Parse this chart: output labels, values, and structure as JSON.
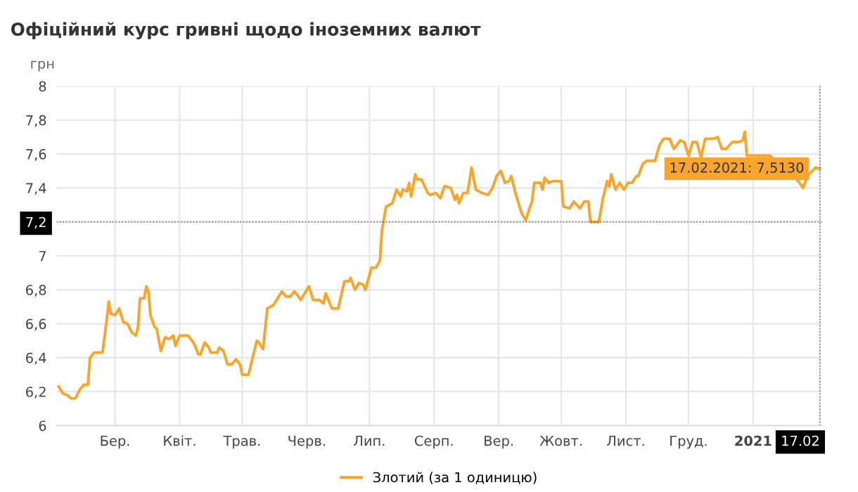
{
  "chart_data": {
    "type": "line",
    "title": "Офіційний курс гривні щодо іноземних валют",
    "ylabel": "грн",
    "ylim": [
      6,
      8
    ],
    "yticks": [
      6,
      {
        "value": 6.2,
        "label": "6,2"
      },
      {
        "value": 6.4,
        "label": "6,4"
      },
      {
        "value": 6.6,
        "label": "6,6"
      },
      {
        "value": 6.8,
        "label": "6,8"
      },
      7,
      {
        "value": 7.2,
        "label": "7,2"
      },
      {
        "value": 7.4,
        "label": "7,4"
      },
      {
        "value": 7.6,
        "label": "7,6"
      },
      {
        "value": 7.8,
        "label": "7,8"
      },
      8
    ],
    "xlim": [
      "2020-02-17",
      "2021-02-18"
    ],
    "xticks": [
      {
        "value": "2020-03-16",
        "label": "Бер."
      },
      {
        "value": "2020-04-16",
        "label": "Квіт."
      },
      {
        "value": "2020-05-16",
        "label": "Трав."
      },
      {
        "value": "2020-06-16",
        "label": "Черв."
      },
      {
        "value": "2020-07-16",
        "label": "Лип."
      },
      {
        "value": "2020-08-16",
        "label": "Серп."
      },
      {
        "value": "2020-09-16",
        "label": "Вер."
      },
      {
        "value": "2020-10-16",
        "label": "Жовт."
      },
      {
        "value": "2020-11-16",
        "label": "Лист."
      },
      {
        "value": "2020-12-16",
        "label": "Груд."
      },
      {
        "value": "2021-01-16",
        "label": "2021"
      },
      {
        "value": "2021-02-17",
        "label": "17.02"
      }
    ],
    "grid": true,
    "legend": "bottom",
    "marker": "none",
    "line_style": "solid",
    "ref_lines": [
      {
        "axis": "y",
        "value": 7.2,
        "line_style": "dotted",
        "color": "#000000"
      },
      {
        "axis": "x",
        "value": "2021-02-17",
        "line_style": "dotted",
        "color": "#000000"
      }
    ],
    "annotations": [
      {
        "text": "17.02.2021: 7,5130",
        "x": "2021-02-17",
        "y": 7.513
      }
    ],
    "series": [
      {
        "name": "Злотий (за 1 одиницю)",
        "color": "#f9a52c",
        "x": [
          "2020-02-18",
          "2020-02-20",
          "2020-02-22",
          "2020-02-24",
          "2020-02-26",
          "2020-02-28",
          "2020-03-01",
          "2020-03-03",
          "2020-03-04",
          "2020-03-06",
          "2020-03-10",
          "2020-03-12",
          "2020-03-13",
          "2020-03-14",
          "2020-03-16",
          "2020-03-18",
          "2020-03-20",
          "2020-03-22",
          "2020-03-24",
          "2020-03-26",
          "2020-03-27",
          "2020-03-28",
          "2020-03-30",
          "2020-03-31",
          "2020-04-01",
          "2020-04-02",
          "2020-04-04",
          "2020-04-05",
          "2020-04-07",
          "2020-04-09",
          "2020-04-11",
          "2020-04-13",
          "2020-04-14",
          "2020-04-16",
          "2020-04-20",
          "2020-04-22",
          "2020-04-23",
          "2020-04-25",
          "2020-04-26",
          "2020-04-28",
          "2020-04-30",
          "2020-05-01",
          "2020-05-04",
          "2020-05-05",
          "2020-05-07",
          "2020-05-09",
          "2020-05-11",
          "2020-05-13",
          "2020-05-15",
          "2020-05-16",
          "2020-05-19",
          "2020-05-20",
          "2020-05-23",
          "2020-05-24",
          "2020-05-26",
          "2020-05-28",
          "2020-05-31",
          "2020-06-02",
          "2020-06-04",
          "2020-06-06",
          "2020-06-08",
          "2020-06-10",
          "2020-06-12",
          "2020-06-13",
          "2020-06-15",
          "2020-06-17",
          "2020-06-19",
          "2020-06-22",
          "2020-06-24",
          "2020-06-25",
          "2020-06-28",
          "2020-07-01",
          "2020-07-04",
          "2020-07-06",
          "2020-07-07",
          "2020-07-09",
          "2020-07-11",
          "2020-07-13",
          "2020-07-14",
          "2020-07-17",
          "2020-07-19",
          "2020-07-21",
          "2020-07-22",
          "2020-07-24",
          "2020-07-27",
          "2020-07-29",
          "2020-07-31",
          "2020-08-01",
          "2020-08-03",
          "2020-08-04",
          "2020-08-05",
          "2020-08-07",
          "2020-08-08",
          "2020-08-10",
          "2020-08-13",
          "2020-08-14",
          "2020-08-17",
          "2020-08-19",
          "2020-08-21",
          "2020-08-24",
          "2020-08-26",
          "2020-08-27",
          "2020-08-28",
          "2020-08-30",
          "2020-09-01",
          "2020-09-03",
          "2020-09-05",
          "2020-09-08",
          "2020-09-11",
          "2020-09-13",
          "2020-09-15",
          "2020-09-17",
          "2020-09-19",
          "2020-09-21",
          "2020-09-22",
          "2020-09-24",
          "2020-09-27",
          "2020-09-29",
          "2020-10-01",
          "2020-10-02",
          "2020-10-03",
          "2020-10-06",
          "2020-10-07",
          "2020-10-08",
          "2020-10-10",
          "2020-10-12",
          "2020-10-16",
          "2020-10-17",
          "2020-10-20",
          "2020-10-22",
          "2020-10-25",
          "2020-10-27",
          "2020-10-29",
          "2020-10-30",
          "2020-11-03",
          "2020-11-05",
          "2020-11-07",
          "2020-11-08",
          "2020-11-09",
          "2020-11-11",
          "2020-11-13",
          "2020-11-15",
          "2020-11-17",
          "2020-11-19",
          "2020-11-21",
          "2020-11-22",
          "2020-11-24",
          "2020-11-26",
          "2020-11-30",
          "2020-12-02",
          "2020-12-04",
          "2020-12-07",
          "2020-12-09",
          "2020-12-12",
          "2020-12-14",
          "2020-12-16",
          "2020-12-18",
          "2020-12-20",
          "2020-12-22",
          "2020-12-24",
          "2020-12-28",
          "2020-12-30",
          "2021-01-01",
          "2021-01-03",
          "2021-01-06",
          "2021-01-09",
          "2021-01-11",
          "2021-01-12",
          "2021-01-13",
          "2021-01-24",
          "2021-02-06",
          "2021-02-09",
          "2021-02-11",
          "2021-02-15",
          "2021-02-17"
        ],
        "values": [
          6.23,
          6.19,
          6.18,
          6.16,
          6.16,
          6.21,
          6.24,
          6.24,
          6.4,
          6.43,
          6.43,
          6.62,
          6.73,
          6.66,
          6.65,
          6.69,
          6.61,
          6.6,
          6.55,
          6.53,
          6.58,
          6.75,
          6.75,
          6.82,
          6.79,
          6.65,
          6.58,
          6.57,
          6.44,
          6.52,
          6.51,
          6.53,
          6.47,
          6.53,
          6.53,
          6.5,
          6.48,
          6.42,
          6.42,
          6.49,
          6.46,
          6.43,
          6.43,
          6.46,
          6.44,
          6.36,
          6.36,
          6.39,
          6.36,
          6.3,
          6.3,
          6.35,
          6.5,
          6.49,
          6.45,
          6.69,
          6.71,
          6.75,
          6.79,
          6.76,
          6.76,
          6.79,
          6.76,
          6.74,
          6.78,
          6.82,
          6.74,
          6.74,
          6.72,
          6.78,
          6.69,
          6.69,
          6.85,
          6.85,
          6.87,
          6.8,
          6.84,
          6.83,
          6.8,
          6.93,
          6.93,
          6.97,
          7.15,
          7.29,
          7.31,
          7.39,
          7.35,
          7.39,
          7.38,
          7.43,
          7.35,
          7.48,
          7.45,
          7.45,
          7.37,
          7.36,
          7.37,
          7.34,
          7.41,
          7.4,
          7.33,
          7.36,
          7.31,
          7.37,
          7.37,
          7.52,
          7.39,
          7.37,
          7.36,
          7.4,
          7.47,
          7.5,
          7.43,
          7.44,
          7.47,
          7.37,
          7.25,
          7.21,
          7.29,
          7.32,
          7.43,
          7.43,
          7.39,
          7.46,
          7.43,
          7.44,
          7.44,
          7.29,
          7.28,
          7.32,
          7.28,
          7.32,
          7.32,
          7.2,
          7.2,
          7.34,
          7.44,
          7.41,
          7.48,
          7.39,
          7.43,
          7.39,
          7.43,
          7.43,
          7.47,
          7.47,
          7.54,
          7.56,
          7.56,
          7.65,
          7.69,
          7.69,
          7.63,
          7.68,
          7.67,
          7.59,
          7.67,
          7.67,
          7.58,
          7.69,
          7.69,
          7.7,
          7.63,
          7.63,
          7.67,
          7.67,
          7.68,
          7.73,
          7.59,
          7.59,
          7.45,
          7.4,
          7.47,
          7.52,
          7.513
        ]
      }
    ]
  }
}
